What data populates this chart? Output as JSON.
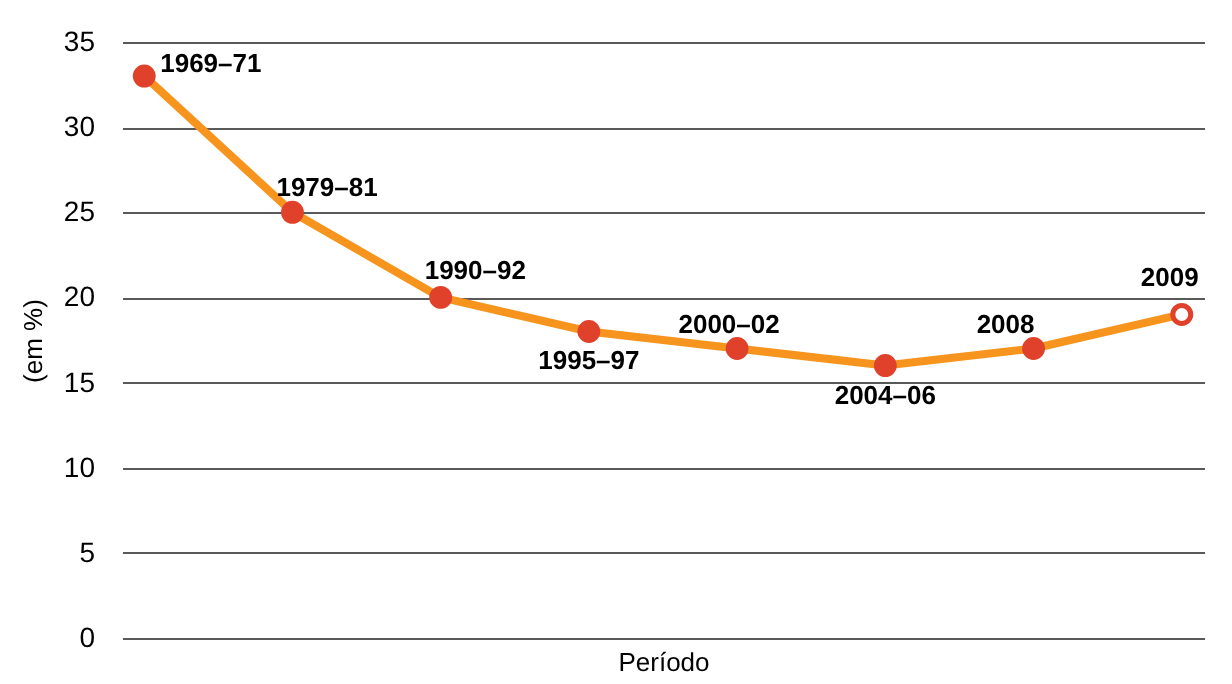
{
  "chart_data": {
    "type": "line",
    "xlabel": "Período",
    "ylabel": "(em %)",
    "categories": [
      null,
      null,
      null,
      null,
      null,
      null,
      null,
      null
    ],
    "ylim": [
      0,
      35
    ],
    "yticks": [
      0,
      5,
      10,
      15,
      20,
      25,
      30,
      35
    ],
    "tick_labels": "y",
    "grid": "y",
    "marker": "circle",
    "series": [
      {
        "color": "#f7941d",
        "colors": [
          "#e0412b",
          "#e0412b",
          "#e0412b",
          "#e0412b",
          "#e0412b",
          "#e0412b",
          "#e0412b",
          "#e0412b"
        ],
        "values": [
          33,
          25,
          20,
          18,
          17,
          16,
          17,
          19
        ]
      }
    ],
    "annotations": [
      "1969–71",
      "1979–81",
      "1990–92",
      "1995–97",
      "2000–02",
      "2004–06",
      "2008",
      "2009"
    ]
  }
}
